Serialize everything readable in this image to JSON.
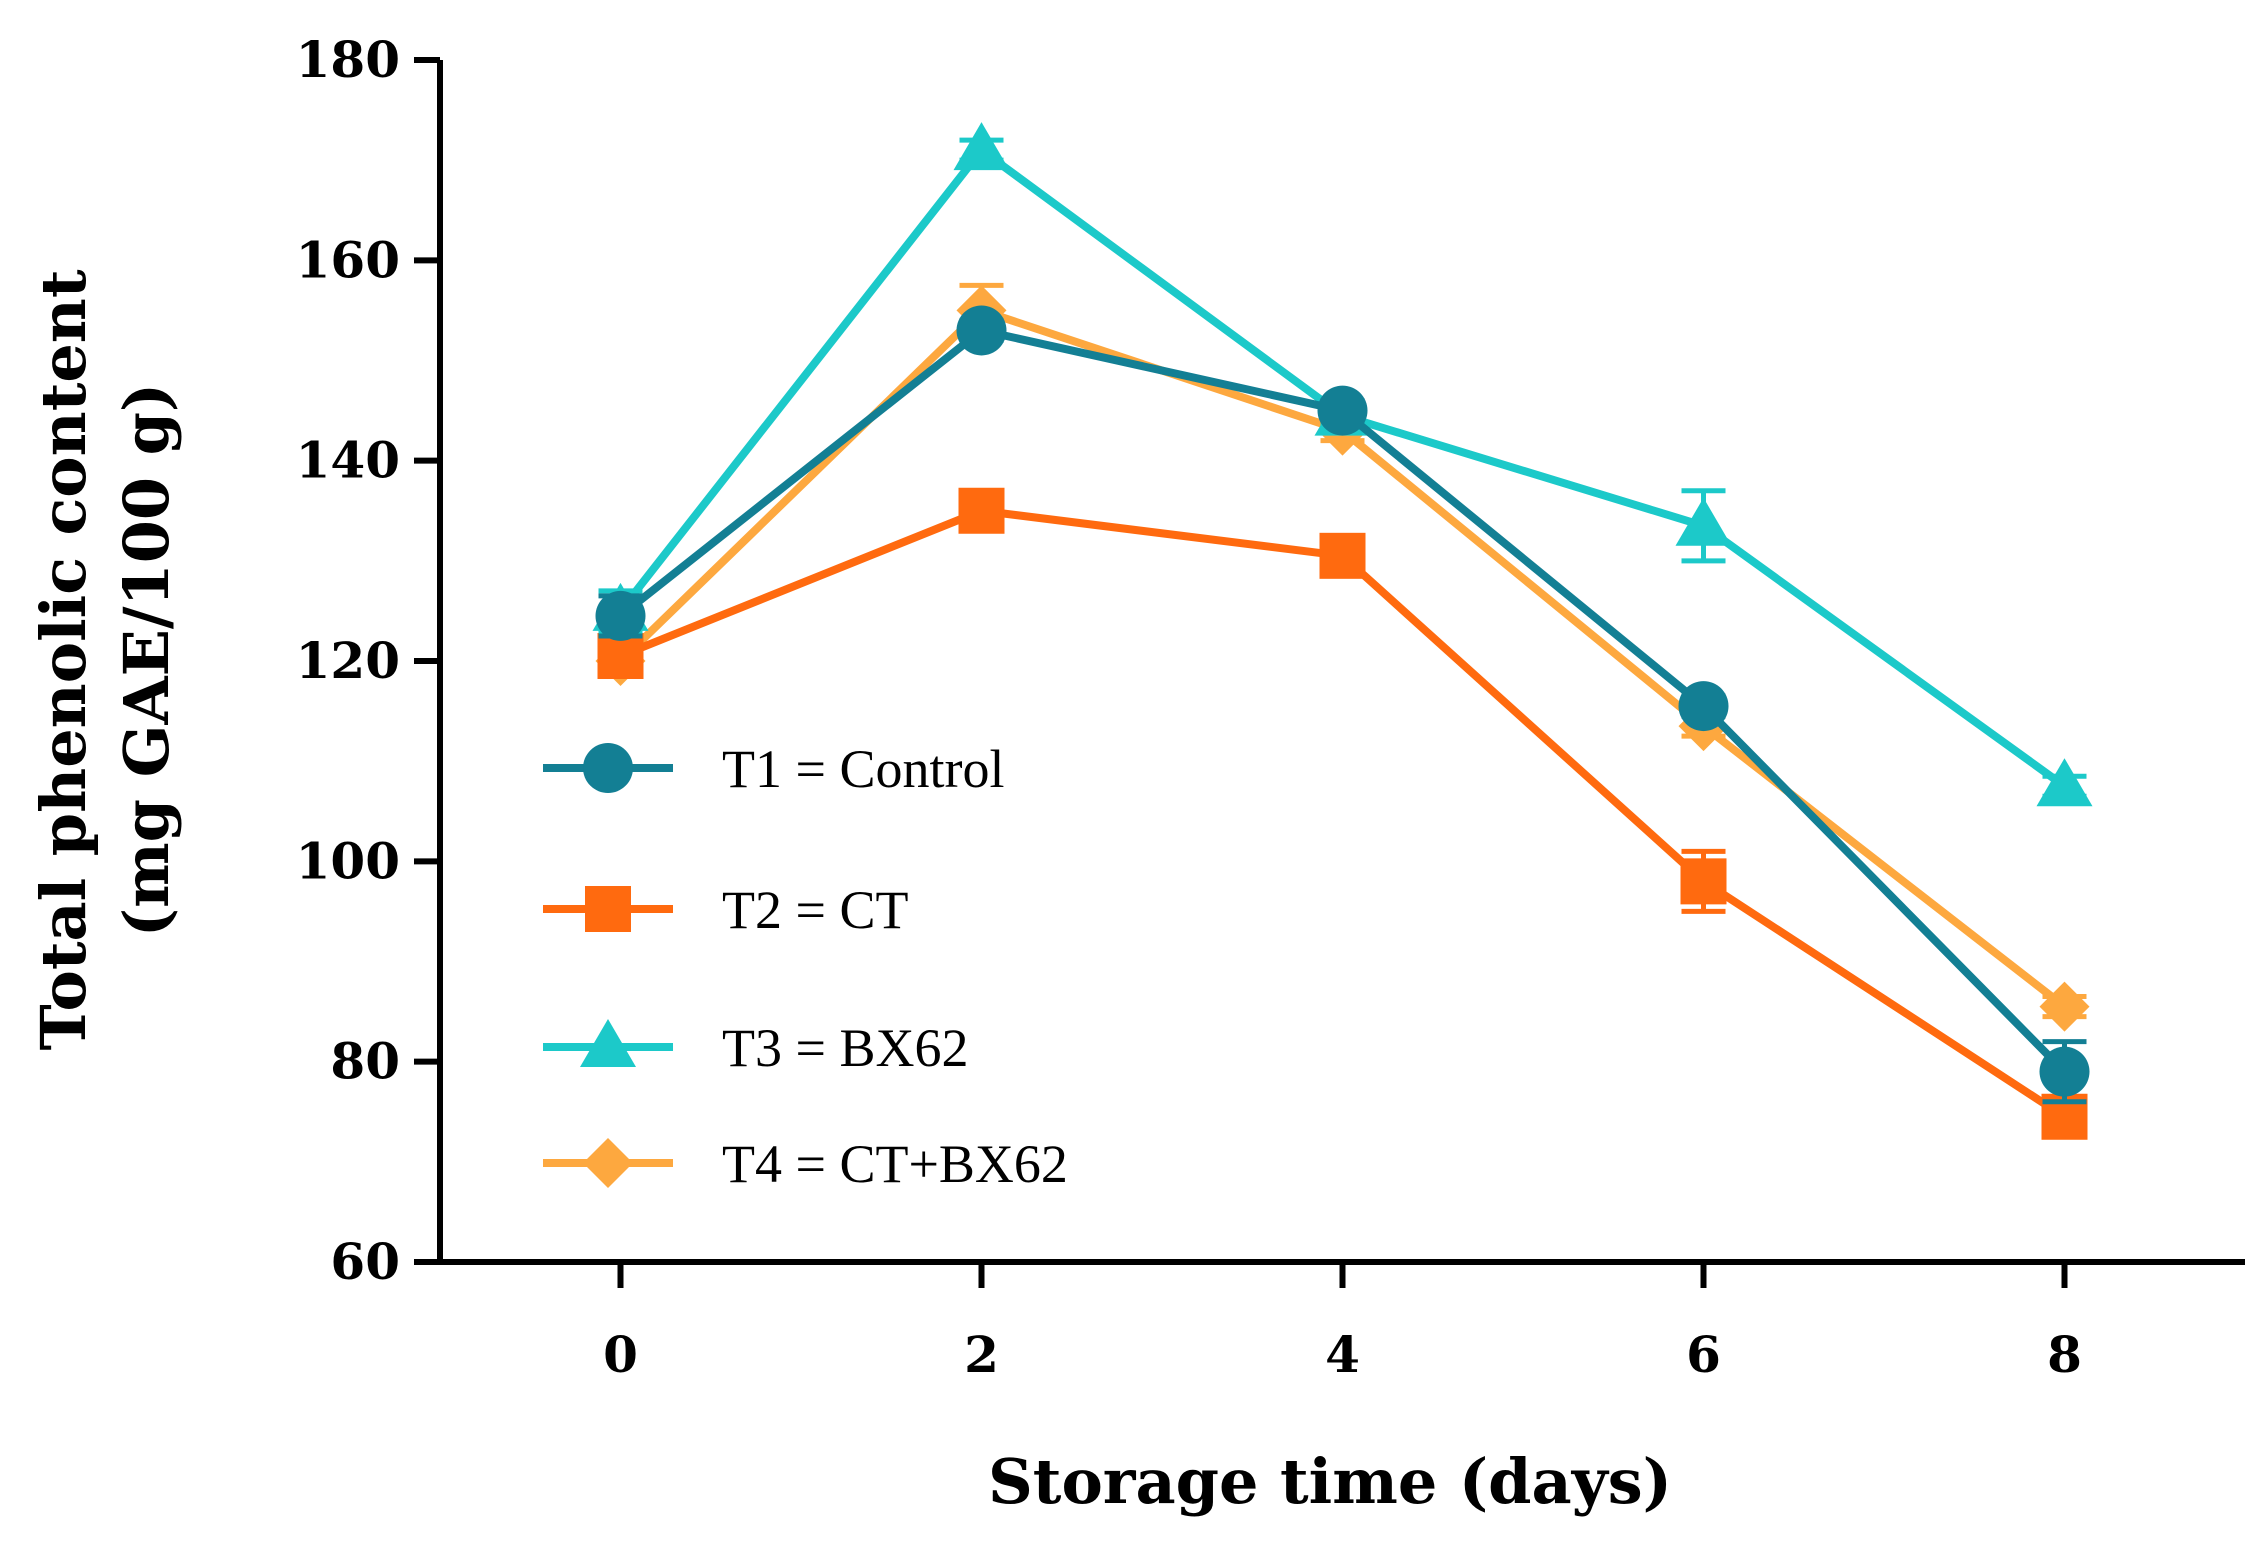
{
  "chart_data": {
    "type": "line",
    "xlabel": "Storage time (days)",
    "ylabel_lines": [
      "Total phenolic content",
      "(mg GAE/100 g)"
    ],
    "x": [
      0,
      2,
      4,
      6,
      8
    ],
    "xticks": [
      0,
      2,
      4,
      6,
      8
    ],
    "xlim": [
      -1,
      9
    ],
    "yticks": [
      60,
      80,
      100,
      120,
      140,
      160,
      180
    ],
    "ylim": [
      60,
      180
    ],
    "grid": false,
    "legend_position": "lower-left",
    "series": [
      {
        "name": "T1 = Control",
        "color": "#137f94",
        "marker": "circle",
        "values": [
          124.5,
          153,
          145,
          115.5,
          79
        ],
        "errors": [
          2,
          1,
          1,
          1,
          3
        ]
      },
      {
        "name": "T2 = CT",
        "color": "#ff6a0f",
        "marker": "square",
        "values": [
          120.5,
          135,
          130.5,
          98,
          74.5
        ],
        "errors": [
          1,
          1,
          1,
          3,
          2
        ]
      },
      {
        "name": "T3 = BX62",
        "color": "#1cc9c9",
        "marker": "triangle",
        "values": [
          125,
          171,
          144.5,
          133.5,
          107.5
        ],
        "errors": [
          2,
          1,
          1,
          3.5,
          1
        ]
      },
      {
        "name": "T4 = CT+BX62",
        "color": "#fda83f",
        "marker": "diamond",
        "values": [
          120,
          155,
          143,
          113.5,
          85.5
        ],
        "errors": [
          1,
          2.5,
          1,
          1,
          1
        ]
      }
    ]
  }
}
